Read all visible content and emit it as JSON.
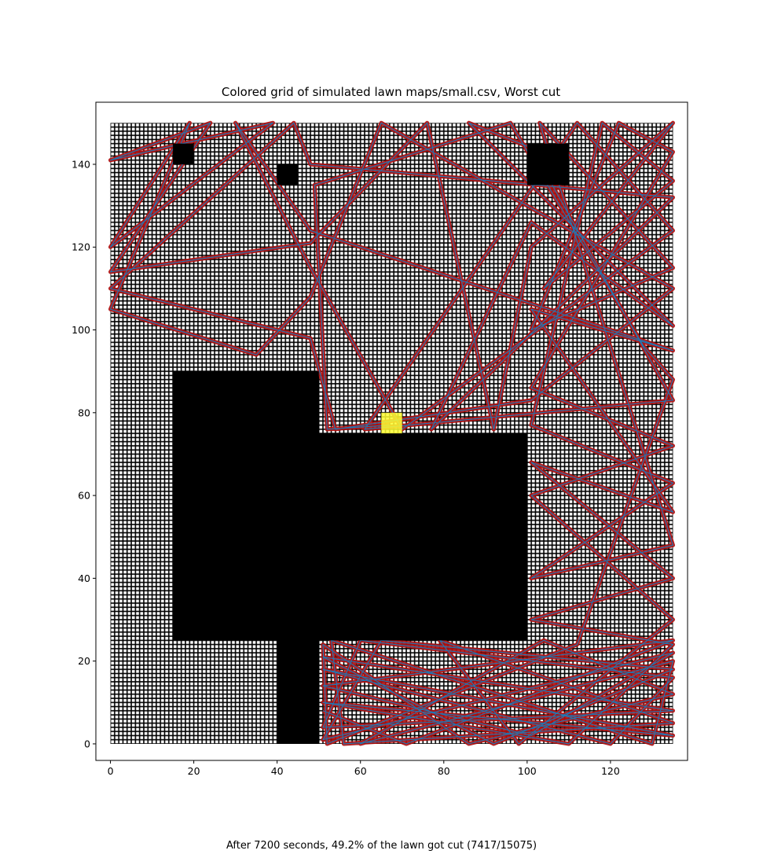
{
  "chart_data": {
    "type": "heatmap",
    "title": "Colored grid of simulated lawn maps/small.csv, Worst cut",
    "xlabel": "",
    "ylabel": "",
    "xlim": [
      -3.5,
      138.5
    ],
    "ylim": [
      -4,
      155
    ],
    "grid": {
      "columns": 135,
      "rows": 150,
      "cell_size": 1
    },
    "x_ticks": [
      0,
      20,
      40,
      60,
      80,
      100,
      120
    ],
    "y_ticks": [
      0,
      20,
      40,
      60,
      80,
      100,
      120,
      140
    ],
    "obstacles": [
      {
        "x0": 15,
        "x1": 50,
        "y0": 25,
        "y1": 90
      },
      {
        "x0": 50,
        "x1": 100,
        "y0": 25,
        "y1": 75
      },
      {
        "x0": 40,
        "x1": 50,
        "y0": 0,
        "y1": 25
      },
      {
        "x0": 100,
        "x1": 110,
        "y0": 135,
        "y1": 145
      },
      {
        "x0": 15,
        "x1": 20,
        "y0": 140,
        "y1": 145
      },
      {
        "x0": 40,
        "x1": 45,
        "y0": 135,
        "y1": 140
      }
    ],
    "base_station": {
      "x0": 65,
      "x1": 70,
      "y0": 75,
      "y1": 80
    },
    "colors": {
      "uncut_cell": "#ffffff",
      "cell_border": "#000000",
      "obstacle": "#000000",
      "cut_cell": "#b01010",
      "path": "#1f77b4",
      "base_station": "#ffff33"
    },
    "path_points": [
      [
        67,
        77
      ],
      [
        52,
        76
      ],
      [
        49,
        135
      ],
      [
        96,
        150
      ],
      [
        128,
        96
      ],
      [
        135,
        88
      ],
      [
        112,
        24
      ],
      [
        52,
        0
      ],
      [
        51,
        24
      ],
      [
        86,
        0
      ],
      [
        135,
        12
      ],
      [
        104,
        25
      ],
      [
        60,
        0
      ],
      [
        135,
        20
      ],
      [
        130,
        0
      ],
      [
        53,
        25
      ],
      [
        56,
        0
      ],
      [
        135,
        5
      ],
      [
        79,
        25
      ],
      [
        98,
        0
      ],
      [
        135,
        30
      ],
      [
        101,
        60
      ],
      [
        135,
        72
      ],
      [
        101,
        86
      ],
      [
        135,
        143
      ],
      [
        122,
        150
      ],
      [
        101,
        100
      ],
      [
        135,
        115
      ],
      [
        103,
        150
      ],
      [
        135,
        48
      ],
      [
        101,
        40
      ],
      [
        135,
        63
      ],
      [
        101,
        77
      ],
      [
        118,
        150
      ],
      [
        135,
        136
      ],
      [
        104,
        110
      ],
      [
        135,
        150
      ],
      [
        101,
        120
      ],
      [
        92,
        76
      ],
      [
        76,
        150
      ],
      [
        48,
        121
      ],
      [
        0,
        114
      ],
      [
        24,
        150
      ],
      [
        0,
        141
      ],
      [
        39,
        150
      ],
      [
        0,
        120
      ],
      [
        19,
        150
      ],
      [
        0,
        105
      ],
      [
        35,
        94
      ],
      [
        48,
        108
      ],
      [
        65,
        150
      ],
      [
        135,
        110
      ],
      [
        101,
        83
      ],
      [
        54,
        76
      ],
      [
        48,
        98
      ],
      [
        0,
        110
      ],
      [
        44,
        150
      ],
      [
        48,
        140
      ],
      [
        135,
        132
      ],
      [
        77,
        76
      ],
      [
        101,
        126
      ],
      [
        135,
        101
      ],
      [
        86,
        150
      ],
      [
        101,
        144
      ],
      [
        135,
        83
      ],
      [
        61,
        76
      ],
      [
        112,
        150
      ],
      [
        135,
        124
      ],
      [
        70,
        76
      ],
      [
        48,
        115
      ],
      [
        30,
        150
      ],
      [
        48,
        124
      ],
      [
        135,
        95
      ],
      [
        101,
        105
      ],
      [
        135,
        56
      ],
      [
        101,
        68
      ],
      [
        135,
        40
      ],
      [
        101,
        30
      ],
      [
        135,
        24
      ],
      [
        110,
        0
      ],
      [
        51,
        10
      ],
      [
        135,
        2
      ],
      [
        51,
        18
      ],
      [
        120,
        0
      ],
      [
        135,
        16
      ],
      [
        60,
        25
      ],
      [
        51,
        4
      ],
      [
        135,
        8
      ],
      [
        51,
        21
      ],
      [
        92,
        0
      ],
      [
        135,
        18
      ],
      [
        65,
        25
      ],
      [
        51,
        1
      ],
      [
        135,
        22
      ],
      [
        101,
        2
      ],
      [
        51,
        14
      ],
      [
        135,
        25
      ],
      [
        71,
        0
      ],
      [
        51,
        8
      ]
    ]
  },
  "caption": "After 7200 seconds, 49.2% of the lawn got cut (7417/15075)"
}
